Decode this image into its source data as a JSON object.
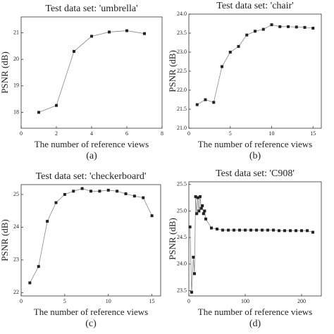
{
  "chart_data": [
    {
      "type": "line",
      "title": "Test data set: 'umbrella'",
      "xlabel": "The number of reference views",
      "ylabel": "PSNR (dB)",
      "caption": "(a)",
      "x": [
        1,
        2,
        3,
        4,
        5,
        6,
        7
      ],
      "series": [
        {
          "name": "umbrella",
          "color": "#222222",
          "values": [
            18.0,
            18.26,
            20.3,
            20.87,
            21.03,
            21.08,
            20.97
          ]
        }
      ],
      "xlim": [
        0,
        8
      ],
      "xticks": [
        0,
        2,
        4,
        6,
        8
      ],
      "ylim": [
        17.4,
        21.6
      ],
      "yticks": [
        18,
        19,
        20,
        21
      ]
    },
    {
      "type": "line",
      "title": "Test data set: 'chair'",
      "xlabel": "The number of reference views",
      "ylabel": "PSNR (dB)",
      "caption": "(b)",
      "x": [
        1,
        2,
        3,
        4,
        5,
        6,
        7,
        8,
        9,
        10,
        11,
        12,
        13,
        14,
        15
      ],
      "series": [
        {
          "name": "chair",
          "color": "#222222",
          "values": [
            21.62,
            21.75,
            21.68,
            22.62,
            23.0,
            23.15,
            23.45,
            23.55,
            23.6,
            23.72,
            23.67,
            23.67,
            23.66,
            23.65,
            23.63
          ]
        }
      ],
      "xlim": [
        0,
        16
      ],
      "xticks": [
        0,
        5,
        10,
        15
      ],
      "ylim": [
        21.0,
        24.0
      ],
      "yticks": [
        {
          "value": 21,
          "label": "21.0"
        },
        {
          "value": 21.5,
          "label": "21.5"
        },
        {
          "value": 22,
          "label": "22.0"
        },
        {
          "value": 22.5,
          "label": "22.5"
        },
        {
          "value": 23,
          "label": "23.0"
        },
        {
          "value": 23.5,
          "label": "23.5"
        },
        {
          "value": 24,
          "label": "24.0"
        }
      ]
    },
    {
      "type": "line",
      "title": "Test data set: 'checkerboard'",
      "xlabel": "The number of reference views",
      "ylabel": "PSNR (dB)",
      "caption": "(c)",
      "x": [
        1,
        2,
        3,
        4,
        5,
        6,
        7,
        8,
        9,
        10,
        11,
        12,
        13,
        14,
        15
      ],
      "series": [
        {
          "name": "checkerboard",
          "color": "#222222",
          "values": [
            22.3,
            22.8,
            24.18,
            24.75,
            25.0,
            25.1,
            25.18,
            25.1,
            25.1,
            25.13,
            25.1,
            25.02,
            24.95,
            24.9,
            24.35
          ]
        }
      ],
      "xlim": [
        0,
        16
      ],
      "xticks": [
        0,
        5,
        10,
        15
      ],
      "ylim": [
        21.9,
        25.3
      ],
      "yticks": [
        22,
        23,
        24,
        25
      ]
    },
    {
      "type": "line",
      "title": "Test data set: 'C908'",
      "xlabel": "The number of reference views",
      "ylabel": "PSNR (dB)",
      "caption": "(d)",
      "x": [
        2,
        5,
        8,
        10,
        12,
        14,
        16,
        18,
        20,
        22,
        24,
        26,
        28,
        30,
        40,
        50,
        60,
        70,
        80,
        90,
        100,
        110,
        120,
        130,
        140,
        150,
        160,
        170,
        180,
        190,
        200,
        210,
        220
      ],
      "series": [
        {
          "name": "C908",
          "color": "#222222",
          "values": [
            24.7,
            23.47,
            24.13,
            23.82,
            25.27,
            24.95,
            25.25,
            25.0,
            25.27,
            25.05,
            25.1,
            24.95,
            25.0,
            24.85,
            24.68,
            24.66,
            24.64,
            24.64,
            24.64,
            24.64,
            24.64,
            24.64,
            24.64,
            24.64,
            24.64,
            24.64,
            24.63,
            24.63,
            24.63,
            24.63,
            24.63,
            24.63,
            24.6
          ]
        }
      ],
      "xlim": [
        0,
        235
      ],
      "xticks": [
        0,
        100,
        200
      ],
      "ylim": [
        23.4,
        25.55
      ],
      "yticks": [
        {
          "value": 23.5,
          "label": "23.5"
        },
        {
          "value": 24,
          "label": "24.0"
        },
        {
          "value": 24.5,
          "label": "24.5"
        },
        {
          "value": 25,
          "label": "25.0"
        },
        {
          "value": 25.5,
          "label": "25.5"
        }
      ]
    }
  ]
}
